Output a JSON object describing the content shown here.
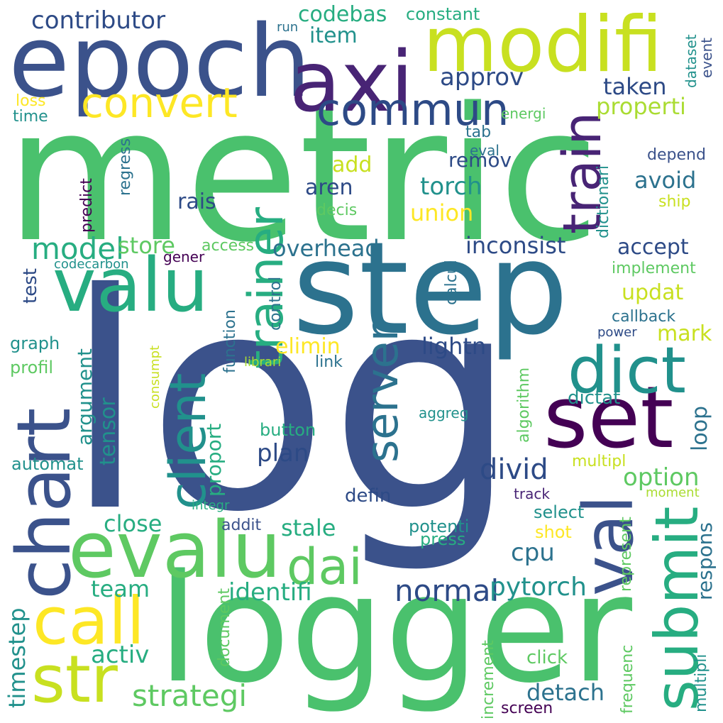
{
  "palette": {
    "purple": "#482475",
    "dark_purple": "#440154",
    "indigo": "#3b528b",
    "slate": "#2d4a86",
    "blue_teal": "#2c728e",
    "teal": "#21918c",
    "teal_green": "#27ad81",
    "green": "#5ec962",
    "bright_green": "#4ac16d",
    "lime": "#aadc32",
    "yellow_green": "#c8e020",
    "yellow": "#fde725"
  },
  "words": [
    {
      "text": "metric"
    },
    {
      "text": "log"
    },
    {
      "text": "logger"
    },
    {
      "text": "step"
    },
    {
      "text": "epoch"
    },
    {
      "text": "modifi"
    },
    {
      "text": "axi"
    },
    {
      "text": "chart"
    },
    {
      "text": "evalu"
    },
    {
      "text": "set"
    },
    {
      "text": "valu"
    },
    {
      "text": "str"
    },
    {
      "text": "call"
    },
    {
      "text": "dict"
    },
    {
      "text": "val"
    },
    {
      "text": "submit"
    },
    {
      "text": "commun"
    },
    {
      "text": "convert"
    },
    {
      "text": "train"
    },
    {
      "text": "trainer"
    },
    {
      "text": "client"
    },
    {
      "text": "server"
    },
    {
      "text": "dai"
    },
    {
      "text": "contributor"
    },
    {
      "text": "codebas"
    },
    {
      "text": "constant"
    },
    {
      "text": "item"
    },
    {
      "text": "run"
    },
    {
      "text": "dataset"
    },
    {
      "text": "event"
    },
    {
      "text": "approv"
    },
    {
      "text": "taken"
    },
    {
      "text": "properti"
    },
    {
      "text": "loss"
    },
    {
      "text": "time"
    },
    {
      "text": "energi"
    },
    {
      "text": "tab"
    },
    {
      "text": "eval"
    },
    {
      "text": "regress"
    },
    {
      "text": "predict"
    },
    {
      "text": "add"
    },
    {
      "text": "remov"
    },
    {
      "text": "depend"
    },
    {
      "text": "aren"
    },
    {
      "text": "torch"
    },
    {
      "text": "avoid"
    },
    {
      "text": "rais"
    },
    {
      "text": "union"
    },
    {
      "text": "decis"
    },
    {
      "text": "ship"
    },
    {
      "text": "dictionari"
    },
    {
      "text": "model"
    },
    {
      "text": "store"
    },
    {
      "text": "access"
    },
    {
      "text": "overhead"
    },
    {
      "text": "inconsist"
    },
    {
      "text": "accept"
    },
    {
      "text": "codecarbon"
    },
    {
      "text": "gener"
    },
    {
      "text": "implement"
    },
    {
      "text": "test"
    },
    {
      "text": "control"
    },
    {
      "text": "calcul"
    },
    {
      "text": "updat"
    },
    {
      "text": "callback"
    },
    {
      "text": "mark"
    },
    {
      "text": "power"
    },
    {
      "text": "graph"
    },
    {
      "text": "argument"
    },
    {
      "text": "elimin"
    },
    {
      "text": "function"
    },
    {
      "text": "lightn"
    },
    {
      "text": "consumpt"
    },
    {
      "text": "profil"
    },
    {
      "text": "librari"
    },
    {
      "text": "link"
    },
    {
      "text": "tensor"
    },
    {
      "text": "proport"
    },
    {
      "text": "algorithm"
    },
    {
      "text": "dictat"
    },
    {
      "text": "loop"
    },
    {
      "text": "button"
    },
    {
      "text": "aggreg"
    },
    {
      "text": "plan"
    },
    {
      "text": "automat"
    },
    {
      "text": "divid"
    },
    {
      "text": "multipl"
    },
    {
      "text": "option"
    },
    {
      "text": "defin"
    },
    {
      "text": "track"
    },
    {
      "text": "moment"
    },
    {
      "text": "integr"
    },
    {
      "text": "respons"
    },
    {
      "text": "select"
    },
    {
      "text": "close"
    },
    {
      "text": "addit"
    },
    {
      "text": "stale"
    },
    {
      "text": "potenti"
    },
    {
      "text": "shot"
    },
    {
      "text": "press"
    },
    {
      "text": "represent"
    },
    {
      "text": "cpu"
    },
    {
      "text": "team"
    },
    {
      "text": "normal"
    },
    {
      "text": "identifi"
    },
    {
      "text": "pytorch"
    },
    {
      "text": "timestep"
    },
    {
      "text": "document"
    },
    {
      "text": "increment"
    },
    {
      "text": "frequenc"
    },
    {
      "text": "multipli"
    },
    {
      "text": "activ"
    },
    {
      "text": "click"
    },
    {
      "text": "strategi"
    },
    {
      "text": "detach"
    },
    {
      "text": "screen"
    }
  ]
}
